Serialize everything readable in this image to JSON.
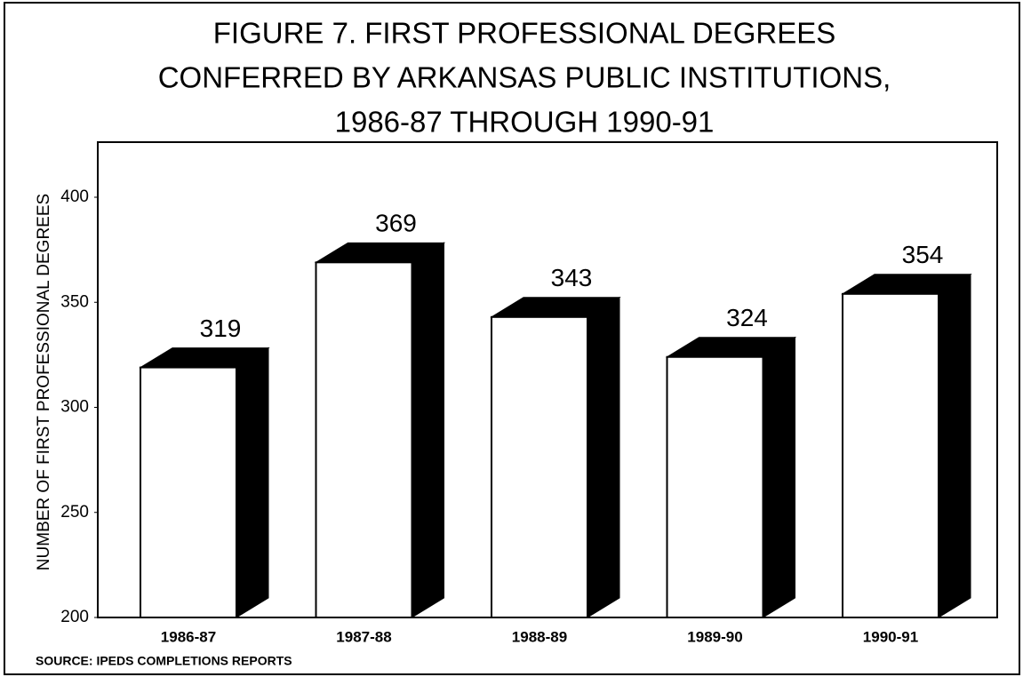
{
  "chart_data": {
    "type": "bar3d",
    "title": [
      "FIGURE 7. FIRST PROFESSIONAL DEGREES",
      "CONFERRED BY ARKANSAS PUBLIC INSTITUTIONS,",
      "1986-87 THROUGH 1990-91"
    ],
    "ylabel": "NUMBER OF FIRST PROFESSIONAL DEGREES",
    "source": "SOURCE: IPEDS COMPLETIONS REPORTS",
    "categories": [
      "1986-87",
      "1987-88",
      "1988-89",
      "1989-90",
      "1990-91"
    ],
    "values": [
      319,
      369,
      343,
      324,
      354
    ],
    "color": "#ffffff",
    "side_color": "#000000",
    "ylim": [
      200,
      400
    ],
    "yticks": [
      200,
      250,
      300,
      350,
      400
    ],
    "grid": false
  }
}
